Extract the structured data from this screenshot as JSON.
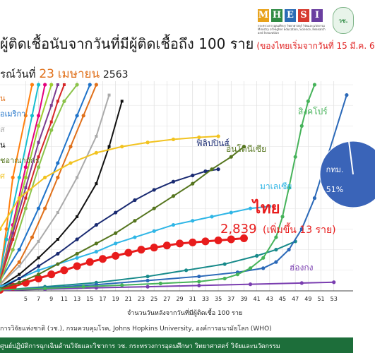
{
  "header": {
    "title": "ผู้ติดเชื้อนับจากวันที่มีผู้ติดเชื้อถึง 100 ราย",
    "title_note": "(ของไทยเริ่มจากวันที่ 15 มี.ค. 6",
    "date_prefix": "รณ์วันที่",
    "date_day": "23",
    "date_month": "เมษายน",
    "date_year": "2563"
  },
  "logo": {
    "letters": [
      "M",
      "H",
      "E",
      "S",
      "I"
    ],
    "letter_colors": [
      "#e8a21a",
      "#2f8b44",
      "#2b6cb5",
      "#d63a2f",
      "#6a3fa0"
    ],
    "subtitle": "กระทรวงการอุดมศึกษา วิทยาศาสตร์ วิจัยและนวัตกรรม Ministry of Higher Education, Science, Research and Innovation",
    "seal_text": "วช."
  },
  "thai_label": {
    "name": "ไทย",
    "value_text": "2,839",
    "increase_text": "(เพิ่มขึ้น 13 ราย)",
    "color": "#e81c1c"
  },
  "pie_inset": {
    "label": "กทม.",
    "percent": "51%",
    "color": "#3a64b8"
  },
  "footer": {
    "text": "ศูนย์ปฏิบัติการฉุกเฉินด้านวิจัยและวิชาการ   วช.   กระทรวงการอุดมศึกษา วิทยาศาสตร์ วิจัยและนวัตกรรม"
  },
  "source": "การวิจัยแห่งชาติ (วช.), กรมควบคุมโรค, Johns Hopkins University, องค์การอนามัยโลก (WHO)",
  "chart_data": {
    "type": "line",
    "xlabel": "จำนวนวันหลังจากวันที่มีผู้ติดเชื้อ 100 ราย",
    "ylabel": "",
    "xlim": [
      1,
      56
    ],
    "x_ticks": [
      5,
      7,
      9,
      11,
      13,
      15,
      17,
      19,
      21,
      23,
      25,
      27,
      29,
      31,
      33,
      35,
      37,
      39,
      41,
      43,
      45,
      47,
      49,
      51,
      53
    ],
    "ylim": [
      0,
      100
    ],
    "grid": true,
    "y_scale": "log",
    "series": [
      {
        "name": "สิงคโปร์",
        "color": "#46b35a",
        "marker": "circle",
        "label_color": "#46b35a",
        "x": [
          1,
          8,
          14,
          20,
          26,
          32,
          36,
          38,
          40,
          42,
          44,
          45,
          46,
          47,
          48,
          49,
          50
        ],
        "y": [
          0.5,
          1.2,
          2.0,
          2.8,
          3.6,
          4.5,
          6,
          8,
          11,
          16,
          26,
          36,
          50,
          65,
          80,
          92,
          100
        ]
      },
      {
        "name": "อินโดนีเซีย",
        "color": "#55751e",
        "marker": "circle",
        "label_color": "#55751e",
        "x": [
          1,
          4,
          7,
          10,
          13,
          16,
          19,
          22,
          25,
          28,
          31,
          34,
          37,
          39
        ],
        "y": [
          1,
          4,
          8,
          13,
          18,
          23,
          28,
          34,
          40,
          46,
          52,
          59,
          65,
          70
        ]
      },
      {
        "name": "ฟิลิปปินส์",
        "color": "#1a2b72",
        "marker": "circle",
        "label_color": "#1a2b72",
        "x": [
          1,
          4,
          7,
          10,
          13,
          16,
          19,
          22,
          25,
          28,
          31,
          33,
          35
        ],
        "y": [
          1,
          6,
          12,
          18,
          25,
          32,
          38,
          44,
          49,
          53,
          56,
          58,
          59
        ]
      },
      {
        "name": "มาเลเซีย",
        "color": "#2fb6e6",
        "marker": "circle",
        "label_color": "#2fb6e6",
        "x": [
          1,
          4,
          7,
          10,
          13,
          16,
          19,
          22,
          25,
          28,
          31,
          34,
          37,
          40,
          43
        ],
        "y": [
          2,
          6,
          10,
          13,
          16,
          19,
          23,
          26,
          29,
          32,
          34,
          36,
          38,
          40,
          41
        ]
      },
      {
        "name": "ไทย",
        "color": "#e81c1c",
        "marker": "circle",
        "label_color": "#e81c1c",
        "x": [
          1,
          3,
          5,
          7,
          9,
          11,
          13,
          15,
          17,
          19,
          21,
          23,
          25,
          27,
          29,
          31,
          33,
          35,
          37,
          39
        ],
        "y": [
          0.5,
          2,
          4,
          6,
          8,
          10,
          12,
          14,
          15.5,
          17,
          18.5,
          20,
          21,
          22,
          23,
          23.5,
          24,
          24.5,
          25,
          25.5
        ]
      },
      {
        "name": "ฮ่องกง",
        "color": "#7a3eb0",
        "marker": "circle",
        "label_color": "#7a3eb0",
        "x": [
          1,
          8,
          16,
          24,
          32,
          40,
          48,
          53
        ],
        "y": [
          0.2,
          0.8,
          1.5,
          2.0,
          2.6,
          3.2,
          3.8,
          4.2
        ]
      },
      {
        "name": "",
        "color": "#2b69b8",
        "marker": "circle",
        "label_color": "#2b69b8",
        "x": [
          1,
          8,
          16,
          24,
          32,
          38,
          42,
          44,
          46,
          48,
          50,
          52,
          55
        ],
        "y": [
          0.3,
          1.5,
          3,
          5,
          7,
          9,
          11,
          14,
          20,
          30,
          45,
          65,
          95
        ]
      },
      {
        "name": "",
        "color": "#178a8a",
        "marker": "circle",
        "label_color": "#178a8a",
        "x": [
          1,
          8,
          16,
          24,
          30,
          36,
          41,
          44,
          47
        ],
        "y": [
          0.3,
          2,
          4,
          7,
          10,
          13,
          17,
          20,
          24
        ]
      },
      {
        "name": "",
        "color": "#f2c320",
        "marker": "circle",
        "label_color": "#f2c320",
        "x": [
          1,
          4,
          8,
          12,
          16,
          20,
          24,
          28,
          32,
          35
        ],
        "y": [
          30,
          45,
          55,
          62,
          67,
          70,
          72,
          73.5,
          74.5,
          75
        ]
      },
      {
        "name": "",
        "color": "#111111",
        "marker": "square",
        "label_color": "#111111",
        "x": [
          1,
          4,
          7,
          10,
          13,
          16,
          18,
          20
        ],
        "y": [
          2,
          8,
          16,
          25,
          36,
          52,
          70,
          92
        ]
      },
      {
        "name": "",
        "color": "#aaaaaa",
        "marker": "square",
        "label_color": "#aaaaaa",
        "x": [
          1,
          4,
          7,
          10,
          13,
          16,
          18
        ],
        "y": [
          3,
          12,
          24,
          38,
          55,
          75,
          95
        ]
      },
      {
        "name": "",
        "color": "#e0701a",
        "marker": "circle",
        "label_color": "#e0701a",
        "x": [
          1,
          4,
          6,
          8,
          10,
          12,
          14,
          16
        ],
        "y": [
          3,
          14,
          26,
          40,
          55,
          70,
          85,
          100
        ]
      },
      {
        "name": "",
        "color": "#8bc34a",
        "marker": "circle",
        "label_color": "#8bc34a",
        "x": [
          1,
          3,
          5,
          7,
          9,
          11,
          13
        ],
        "y": [
          4,
          20,
          40,
          60,
          78,
          92,
          100
        ]
      },
      {
        "name": "",
        "color": "#1f73c9",
        "marker": "circle",
        "label_color": "#1f73c9",
        "x": [
          1,
          4,
          7,
          10,
          13,
          15
        ],
        "y": [
          5,
          20,
          40,
          62,
          85,
          100
        ]
      },
      {
        "name": "",
        "color": "#d62728",
        "marker": "square",
        "label_color": "#d62728",
        "x": [
          1,
          3,
          5,
          7,
          9,
          10,
          11
        ],
        "y": [
          5,
          25,
          45,
          65,
          82,
          92,
          100
        ]
      },
      {
        "name": "",
        "color": "#7b3b8f",
        "marker": "square",
        "label_color": "#7b3b8f",
        "x": [
          1,
          3,
          5,
          7,
          9,
          10
        ],
        "y": [
          5,
          28,
          50,
          72,
          90,
          100
        ]
      },
      {
        "name": "",
        "color": "#9ccc2f",
        "marker": "circle",
        "label_color": "#9ccc2f",
        "x": [
          1,
          3,
          5,
          7,
          9
        ],
        "y": [
          6,
          30,
          55,
          80,
          100
        ]
      },
      {
        "name": "",
        "color": "#e4007c",
        "marker": "circle",
        "label_color": "#e4007c",
        "x": [
          1,
          3,
          5,
          7,
          8
        ],
        "y": [
          6,
          32,
          60,
          85,
          100
        ]
      },
      {
        "name": "",
        "color": "#17becf",
        "marker": "circle",
        "label_color": "#17becf",
        "x": [
          1,
          2,
          4,
          6,
          7
        ],
        "y": [
          8,
          25,
          55,
          85,
          100
        ]
      },
      {
        "name": "",
        "color": "#ff7f0e",
        "marker": "circle",
        "label_color": "#ff7f0e",
        "x": [
          1,
          2,
          3,
          5,
          6
        ],
        "y": [
          8,
          30,
          55,
          85,
          100
        ]
      }
    ],
    "left_legend": [
      {
        "text": "น",
        "color": "#e0701a"
      },
      {
        "text": "อเมริกา",
        "color": "#1f73c9"
      },
      {
        "text": "ส",
        "color": "#aaaaaa"
      },
      {
        "text": "น",
        "color": "#111111"
      },
      {
        "text": "ชอาณาจักร",
        "color": "#55751e"
      },
      {
        "text": "ศ",
        "color": "#f2c320"
      }
    ]
  }
}
